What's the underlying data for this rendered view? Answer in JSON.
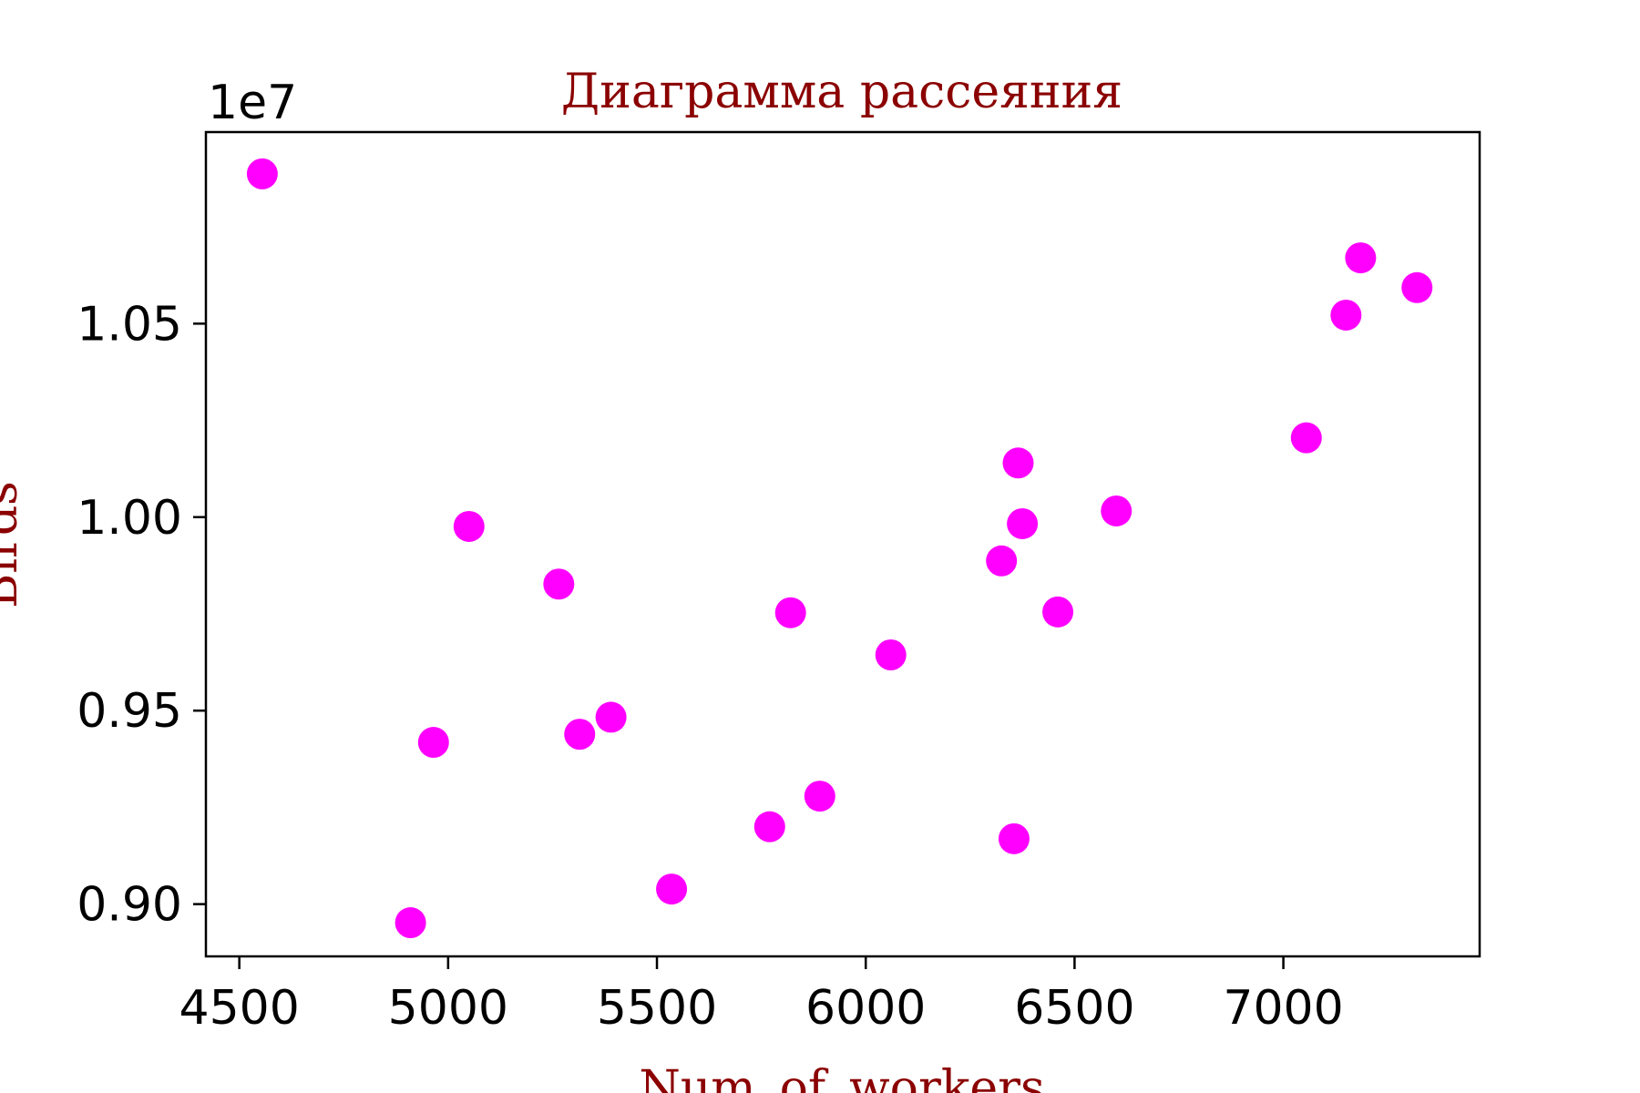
{
  "chart_data": {
    "type": "scatter",
    "title": "Диаграмма рассеяния",
    "xlabel": "Num_of_workers",
    "ylabel": "Birds",
    "y_offset_label": "1e7",
    "y_scale": 10000000,
    "xlim": [
      4420,
      7470
    ],
    "ylim": [
      0.8865,
      1.0995
    ],
    "x_ticks": [
      4500,
      5000,
      5500,
      6000,
      6500,
      7000
    ],
    "x_tick_labels": [
      "4500",
      "5000",
      "5500",
      "6000",
      "6500",
      "7000"
    ],
    "y_ticks": [
      0.9,
      0.95,
      1.0,
      1.05
    ],
    "y_tick_labels": [
      "0.90",
      "0.95",
      "1.00",
      "1.05"
    ],
    "grid": false,
    "legend": "none",
    "colors": {
      "points": "#ff00ff",
      "title": "#8b0000",
      "axis_label": "#8b0000",
      "frame": "#000000"
    },
    "series": [
      {
        "points": [
          {
            "x": 4555,
            "y": 1.0887
          },
          {
            "x": 4910,
            "y": 0.8952
          },
          {
            "x": 4965,
            "y": 0.9418
          },
          {
            "x": 5050,
            "y": 0.9976
          },
          {
            "x": 5265,
            "y": 0.9827
          },
          {
            "x": 5315,
            "y": 0.9439
          },
          {
            "x": 5390,
            "y": 0.9483
          },
          {
            "x": 5535,
            "y": 0.9039
          },
          {
            "x": 5770,
            "y": 0.92
          },
          {
            "x": 5820,
            "y": 0.9753
          },
          {
            "x": 5890,
            "y": 0.9279
          },
          {
            "x": 6060,
            "y": 0.9644
          },
          {
            "x": 6325,
            "y": 0.9887
          },
          {
            "x": 6355,
            "y": 0.9169
          },
          {
            "x": 6365,
            "y": 1.014
          },
          {
            "x": 6375,
            "y": 0.9983
          },
          {
            "x": 6460,
            "y": 0.9755
          },
          {
            "x": 6600,
            "y": 1.0016
          },
          {
            "x": 7055,
            "y": 1.0205
          },
          {
            "x": 7150,
            "y": 1.0522
          },
          {
            "x": 7185,
            "y": 1.067
          },
          {
            "x": 7320,
            "y": 1.0593
          }
        ]
      }
    ]
  }
}
